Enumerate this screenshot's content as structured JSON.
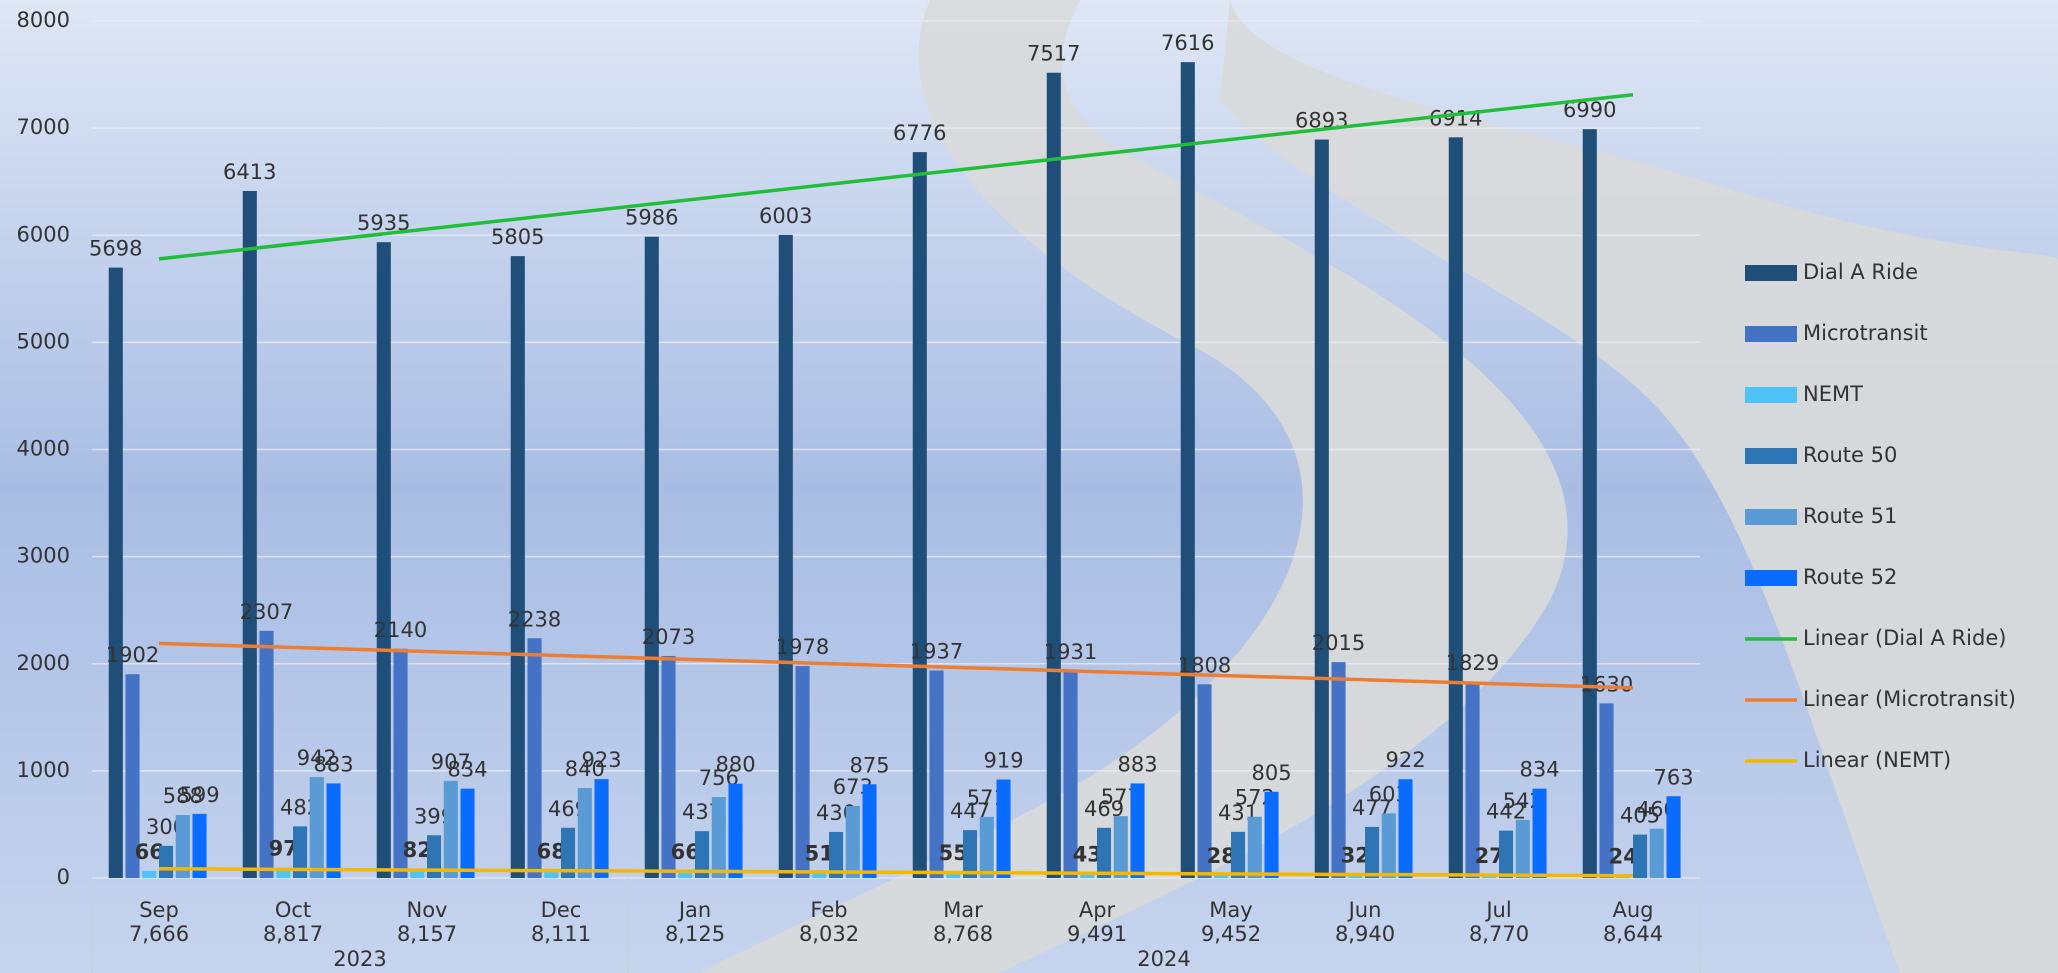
{
  "chart_data": {
    "type": "bar",
    "categories": [
      "Sep",
      "Oct",
      "Nov",
      "Dec",
      "Jan",
      "Feb",
      "Mar",
      "Apr",
      "May",
      "Jun",
      "Jul",
      "Aug"
    ],
    "category_totals": [
      "7,666",
      "8,817",
      "8,157",
      "8,111",
      "8,125",
      "8,032",
      "8,768",
      "9,491",
      "9,452",
      "8,940",
      "8,770",
      "8,644"
    ],
    "category_groups": [
      {
        "label": "2023",
        "count": 4
      },
      {
        "label": "2024",
        "count": 8
      }
    ],
    "series": [
      {
        "name": "Dial A Ride",
        "color": "#1f4e79",
        "values": [
          5698,
          6413,
          5935,
          5805,
          5986,
          6003,
          6776,
          7517,
          7616,
          6893,
          6914,
          6990
        ]
      },
      {
        "name": "Microtransit",
        "color": "#4472c4",
        "values": [
          1902,
          2307,
          2140,
          2238,
          2073,
          1978,
          1937,
          1931,
          1808,
          2015,
          1829,
          1630
        ]
      },
      {
        "name": "NEMT",
        "color": "#4fc3f7",
        "bold_labels": true,
        "values": [
          66,
          97,
          82,
          68,
          66,
          51,
          55,
          43,
          28,
          32,
          27,
          24
        ]
      },
      {
        "name": "Route 50",
        "color": "#2e75b6",
        "values": [
          300,
          482,
          399,
          469,
          437,
          430,
          447,
          469,
          431,
          477,
          442,
          405
        ]
      },
      {
        "name": "Route 51",
        "color": "#5b9bd5",
        "values": [
          588,
          942,
          907,
          840,
          756,
          673,
          571,
          577,
          572,
          603,
          542,
          460
        ]
      },
      {
        "name": "Route 52",
        "color": "#0a6cff",
        "values": [
          599,
          883,
          834,
          923,
          880,
          875,
          919,
          883,
          805,
          922,
          834,
          763
        ]
      }
    ],
    "trendlines": [
      {
        "name": "Linear (Dial A Ride)",
        "series": 0,
        "color": "#1fbf3a"
      },
      {
        "name": "Linear (Microtransit)",
        "series": 1,
        "color": "#ed7d31"
      },
      {
        "name": "Linear (NEMT)",
        "series": 2,
        "color": "#f5b800"
      }
    ],
    "ylim": [
      0,
      8000
    ],
    "yticks": [
      0,
      1000,
      2000,
      3000,
      4000,
      5000,
      6000,
      7000,
      8000
    ],
    "grid": true,
    "legend": "right"
  }
}
